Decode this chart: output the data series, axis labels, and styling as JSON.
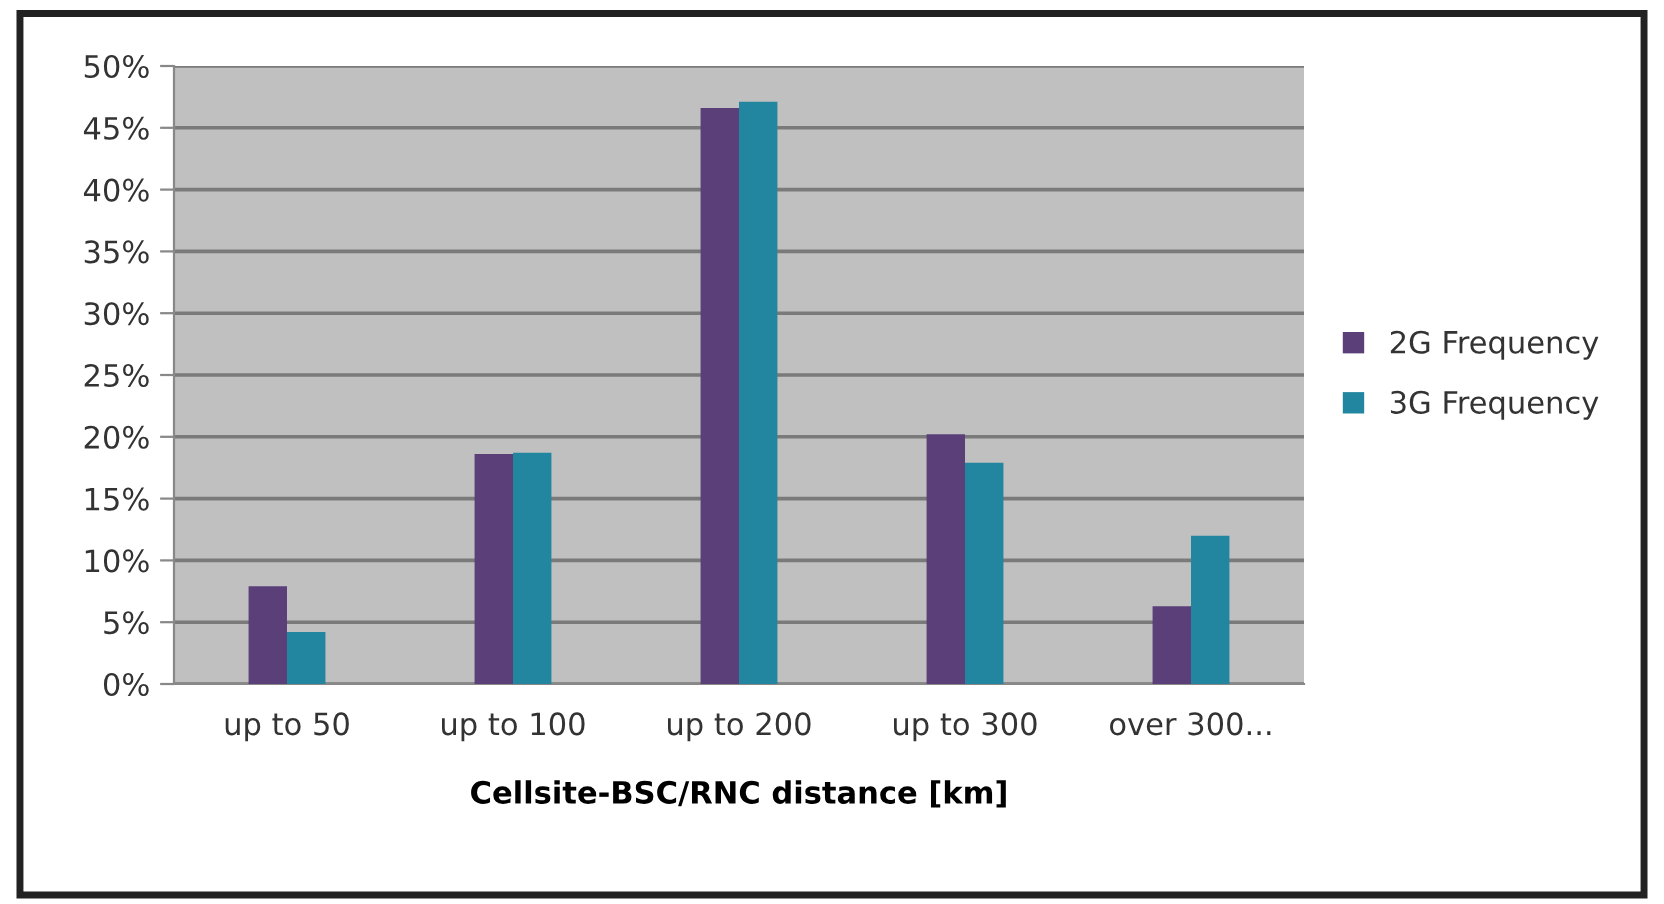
{
  "chart_data": {
    "type": "bar",
    "xlabel": "Cellsite-BSC/RNC distance [km]",
    "categories": [
      "up to 50",
      "up to 100",
      "up to 200",
      "up to 300",
      "over 300..."
    ],
    "series": [
      {
        "name": "2G Frequency",
        "color": "#5a3f78",
        "values": [
          7.9,
          18.6,
          46.6,
          20.2,
          6.3
        ]
      },
      {
        "name": "3G Frequency",
        "color": "#2386a0",
        "values": [
          4.2,
          18.7,
          47.1,
          17.9,
          12.0
        ]
      }
    ],
    "ylim": [
      0,
      50
    ],
    "yticks": [
      {
        "value": 0,
        "label": "0%"
      },
      {
        "value": 5,
        "label": "5%"
      },
      {
        "value": 10,
        "label": "10%"
      },
      {
        "value": 15,
        "label": "15%"
      },
      {
        "value": 20,
        "label": "20%"
      },
      {
        "value": 25,
        "label": "25%"
      },
      {
        "value": 30,
        "label": "30%"
      },
      {
        "value": 35,
        "label": "35%"
      },
      {
        "value": 40,
        "label": "40%"
      },
      {
        "value": 45,
        "label": "45%"
      },
      {
        "value": 50,
        "label": "50%"
      }
    ],
    "grid": "y",
    "legend": "right"
  }
}
